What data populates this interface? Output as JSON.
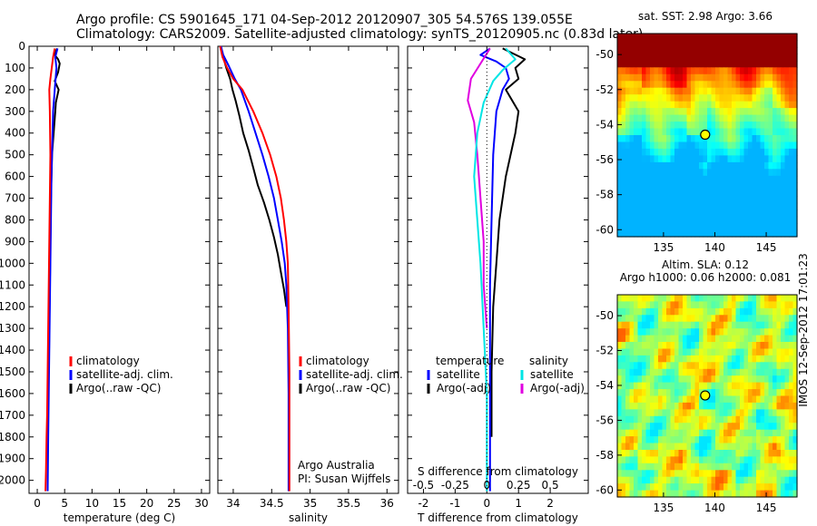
{
  "header": {
    "line1": "Argo profile: CS 5901645_171 04-Sep-2012 20120907_305 54.576S 139.055E",
    "line2": "Climatology: CARS2009. Satellite-adjusted climatology: synTS_20120905.nc (0.83d later)"
  },
  "side_label": "IMOS 12-Sep-2012 17:01:23",
  "colors": {
    "climatology": "#ff0000",
    "satellite": "#0000ff",
    "argo": "#000000",
    "satellite_salinity": "#00e5e5",
    "argo_salinity": "#e000e0"
  },
  "chart_data": [
    {
      "id": "temperature",
      "type": "line",
      "xlabel": "temperature (deg C)",
      "ylabel": "",
      "xlim": [
        -1.5,
        31.5
      ],
      "ylim": [
        2060,
        0
      ],
      "xticks": [
        0,
        5,
        10,
        15,
        20,
        25,
        30
      ],
      "yticks": [
        0,
        100,
        200,
        300,
        400,
        500,
        600,
        700,
        800,
        900,
        1000,
        1100,
        1200,
        1300,
        1400,
        1500,
        1600,
        1700,
        1800,
        1900,
        2000
      ],
      "legend": [
        "climatology",
        "satellite-adj. clim.",
        "Argo(..raw -QC)"
      ],
      "legend_placement": "lower-left",
      "series": [
        {
          "name": "climatology",
          "color": "#ff0000",
          "x": [
            3.2,
            2.9,
            2.4,
            2.2,
            2.3,
            2.4,
            2.3,
            2.2,
            2.1,
            2.0,
            1.9,
            1.8,
            1.7,
            1.6,
            1.5
          ],
          "y": [
            10,
            50,
            150,
            200,
            300,
            500,
            700,
            900,
            1100,
            1300,
            1500,
            1700,
            1800,
            1950,
            2050
          ]
        },
        {
          "name": "satellite-adj. clim.",
          "color": "#0000ff",
          "x": [
            3.7,
            3.3,
            3.5,
            3.2,
            2.9,
            2.8,
            2.6,
            2.5,
            2.4,
            2.3,
            2.2,
            2.1,
            2.0,
            1.9
          ],
          "y": [
            10,
            50,
            100,
            200,
            300,
            400,
            600,
            800,
            1000,
            1200,
            1400,
            1600,
            1800,
            2050
          ]
        },
        {
          "name": "Argo(..raw -QC)",
          "color": "#000000",
          "x": [
            3.6,
            3.2,
            3.8,
            4.1,
            3.8,
            3.2,
            3.9,
            3.4,
            3.3,
            3.0,
            2.7,
            2.5,
            2.4,
            2.3,
            2.2,
            2.1
          ],
          "y": [
            10,
            40,
            60,
            80,
            120,
            160,
            200,
            260,
            300,
            400,
            500,
            700,
            900,
            1100,
            1300,
            1500
          ]
        }
      ]
    },
    {
      "id": "salinity",
      "type": "line",
      "xlabel": "salinity",
      "ylabel": "",
      "xlim": [
        33.8,
        36.15
      ],
      "ylim": [
        2060,
        0
      ],
      "xticks": [
        34,
        34.5,
        35,
        35.5,
        36
      ],
      "xticklabels": [
        "34",
        "34.5",
        "35",
        "35.5",
        "36"
      ],
      "legend": [
        "climatology",
        "satellite-adj. clim.",
        "Argo(..raw -QC)"
      ],
      "legend_placement": "lower-right",
      "annotation": [
        "Argo Australia",
        "PI: Susan Wijffels"
      ],
      "series": [
        {
          "name": "climatology",
          "color": "#ff0000",
          "x": [
            33.83,
            33.86,
            33.92,
            34.0,
            34.12,
            34.26,
            34.38,
            34.48,
            34.56,
            34.62,
            34.66,
            34.69,
            34.71,
            34.72,
            34.73,
            34.73
          ],
          "y": [
            0,
            50,
            100,
            150,
            200,
            300,
            400,
            500,
            600,
            700,
            800,
            900,
            1000,
            1200,
            1500,
            2050
          ]
        },
        {
          "name": "satellite-adj. clim.",
          "color": "#0000ff",
          "x": [
            33.84,
            33.87,
            33.94,
            34.02,
            34.1,
            34.2,
            34.29,
            34.38,
            34.46,
            34.53,
            34.58,
            34.63,
            34.67,
            34.69,
            34.71,
            34.72,
            34.72
          ],
          "y": [
            0,
            40,
            90,
            150,
            200,
            300,
            400,
            500,
            600,
            700,
            800,
            900,
            1000,
            1100,
            1300,
            1600,
            2050
          ]
        },
        {
          "name": "Argo(..raw -QC)",
          "color": "#000000",
          "x": [
            33.83,
            33.87,
            33.91,
            33.96,
            33.99,
            34.03,
            34.08,
            34.13,
            34.2,
            34.26,
            34.32,
            34.4,
            34.47,
            34.53,
            34.58,
            34.62,
            34.66,
            34.69
          ],
          "y": [
            0,
            50,
            100,
            150,
            200,
            250,
            320,
            400,
            480,
            560,
            640,
            720,
            800,
            880,
            960,
            1040,
            1120,
            1200
          ]
        }
      ]
    },
    {
      "id": "difference",
      "type": "line",
      "xlabel": "T difference from climatology",
      "top_label": "S difference from climatology",
      "xlim": [
        -2.5,
        3.2
      ],
      "ylim": [
        2060,
        0
      ],
      "xticks": [
        -2,
        -1,
        0,
        1,
        2
      ],
      "xticklabels": [
        "-2",
        "-1",
        "0",
        "1",
        "2"
      ],
      "top_ticklabels": [
        "-0.5",
        "-0.25",
        "0",
        "0.25",
        "0.5"
      ],
      "legend_temperature_title": "temperature",
      "legend_salinity_title": "salinity",
      "legend": [
        "satellite",
        "Argo(-adj)",
        "satellite",
        "Argo(-adj)"
      ],
      "legend_placement": "lower-center",
      "series": [
        {
          "name": "satellite",
          "color": "#0000ff",
          "x": [
            0.1,
            -0.2,
            0.3,
            0.6,
            0.7,
            0.5,
            0.3,
            0.2,
            0.15,
            0.1,
            0.1,
            0.1,
            0.1
          ],
          "y": [
            10,
            40,
            70,
            100,
            150,
            200,
            300,
            500,
            800,
            1100,
            1400,
            1700,
            2050
          ]
        },
        {
          "name": "Argo(-adj)",
          "color": "#000000",
          "x": [
            0.5,
            1.2,
            0.9,
            1.0,
            0.6,
            1.0,
            0.9,
            0.6,
            0.4,
            0.3,
            0.2,
            0.15,
            0.15
          ],
          "y": [
            10,
            60,
            100,
            150,
            200,
            300,
            400,
            600,
            800,
            1000,
            1200,
            1500,
            1800
          ]
        },
        {
          "name": "satellite",
          "color": "#00e5e5",
          "x": [
            0.6,
            0.9,
            0.5,
            0.2,
            -0.1,
            -0.3,
            -0.4,
            -0.3,
            -0.2,
            -0.1,
            0.0,
            0.0,
            0.0
          ],
          "y": [
            10,
            60,
            110,
            160,
            260,
            400,
            600,
            800,
            1000,
            1300,
            1600,
            1900,
            2050
          ]
        },
        {
          "name": "Argo(-adj)",
          "color": "#e000e0",
          "x": [
            0.1,
            -0.2,
            -0.5,
            -0.6,
            -0.4,
            -0.3,
            -0.2,
            -0.1,
            -0.1,
            0.0
          ],
          "y": [
            10,
            80,
            150,
            250,
            350,
            500,
            700,
            900,
            1100,
            1300
          ]
        }
      ]
    },
    {
      "id": "sst_map",
      "type": "heatmap",
      "title": "sat. SST: 2.98 Argo: 3.66",
      "xticks": [
        135,
        140,
        145
      ],
      "yticks": [
        -50,
        -52,
        -54,
        -56,
        -58,
        -60
      ],
      "xlim": [
        130.5,
        148
      ],
      "ylim": [
        -60.4,
        -48.8
      ],
      "marker": {
        "lon": 139.055,
        "lat": -54.576
      }
    },
    {
      "id": "sla_map",
      "type": "heatmap",
      "title": "Altim. SLA: 0.12",
      "subtitle": "Argo h1000: 0.06 h2000: 0.081",
      "xticks": [
        135,
        140,
        145
      ],
      "yticks": [
        -50,
        -52,
        -54,
        -56,
        -58,
        -60
      ],
      "xlim": [
        130.5,
        148
      ],
      "ylim": [
        -60.4,
        -48.8
      ],
      "marker": {
        "lon": 139.055,
        "lat": -54.576
      }
    }
  ]
}
